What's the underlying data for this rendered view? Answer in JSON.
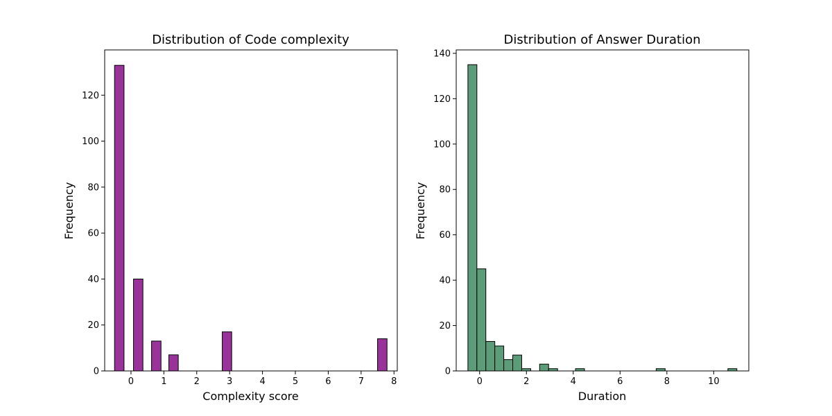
{
  "chart_data": [
    {
      "type": "bar",
      "title": "Distribution of Code complexity",
      "xlabel": "Complexity score",
      "ylabel": "Frequency",
      "xlim": [
        -0.8,
        8.1
      ],
      "ylim": [
        0,
        139.7
      ],
      "x_ticks": [
        0,
        1,
        2,
        3,
        4,
        5,
        6,
        7,
        8
      ],
      "y_ticks": [
        0,
        20,
        40,
        60,
        80,
        100,
        120
      ],
      "bar_color": "#993399",
      "edge_color": "#000000",
      "bin_width": 0.288,
      "bins": [
        {
          "x0": -0.5,
          "x1": -0.212,
          "value": 133
        },
        {
          "x0": 0.075,
          "x1": 0.363,
          "value": 40
        },
        {
          "x0": 0.625,
          "x1": 0.913,
          "value": 13
        },
        {
          "x0": 1.15,
          "x1": 1.438,
          "value": 7
        },
        {
          "x0": 2.775,
          "x1": 3.063,
          "value": 17
        },
        {
          "x0": 7.5,
          "x1": 7.788,
          "value": 14
        }
      ],
      "grid": false,
      "legend": "none"
    },
    {
      "type": "bar",
      "title": "Distribution of Answer Duration",
      "xlabel": "Duration",
      "ylabel": "Frequency",
      "xlim": [
        -1.0,
        11.5
      ],
      "ylim": [
        0,
        141.5
      ],
      "x_ticks": [
        0,
        2,
        4,
        6,
        8,
        10
      ],
      "y_ticks": [
        0,
        20,
        40,
        60,
        80,
        100,
        120,
        140
      ],
      "bar_color": "#5c9c78",
      "edge_color": "#000000",
      "bin_width": 0.383,
      "bins": [
        {
          "x0": -0.5,
          "x1": -0.117,
          "value": 135
        },
        {
          "x0": -0.117,
          "x1": 0.266,
          "value": 45
        },
        {
          "x0": 0.266,
          "x1": 0.649,
          "value": 13
        },
        {
          "x0": 0.649,
          "x1": 1.032,
          "value": 11
        },
        {
          "x0": 1.032,
          "x1": 1.415,
          "value": 5
        },
        {
          "x0": 1.415,
          "x1": 1.798,
          "value": 7
        },
        {
          "x0": 1.798,
          "x1": 2.181,
          "value": 1
        },
        {
          "x0": 2.564,
          "x1": 2.947,
          "value": 3
        },
        {
          "x0": 2.947,
          "x1": 3.33,
          "value": 1
        },
        {
          "x0": 4.096,
          "x1": 4.479,
          "value": 1
        },
        {
          "x0": 7.543,
          "x1": 7.926,
          "value": 1
        },
        {
          "x0": 10.607,
          "x1": 10.99,
          "value": 1
        }
      ],
      "grid": false,
      "legend": "none"
    }
  ]
}
